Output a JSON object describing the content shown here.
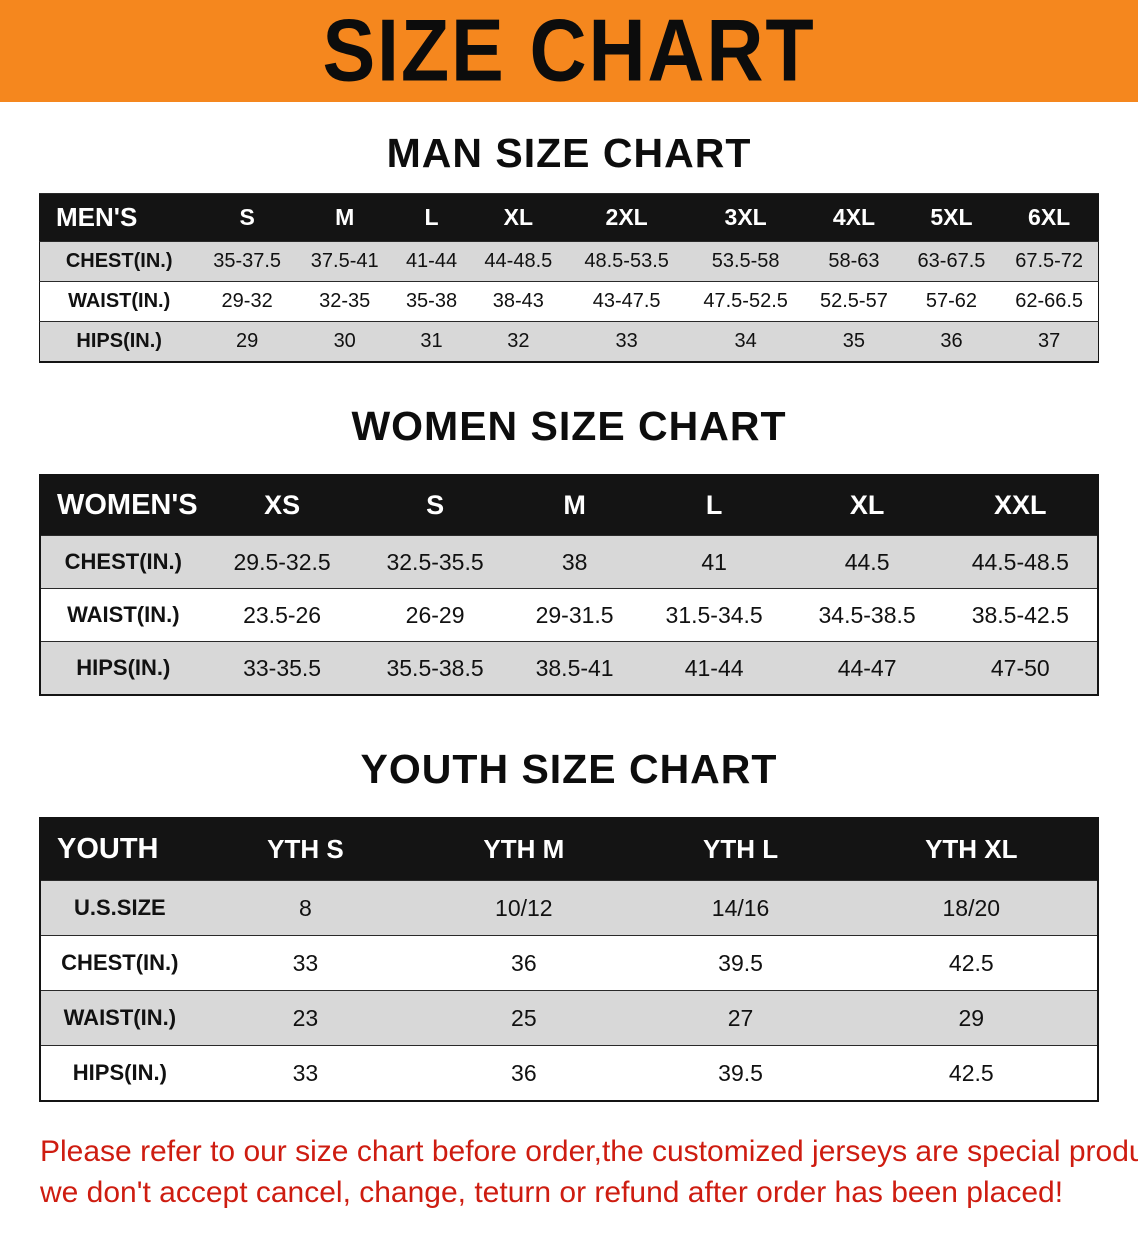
{
  "banner": {
    "title": "SIZE CHART"
  },
  "colors": {
    "banner_bg": "#f5871e",
    "header_row_bg": "#141414",
    "shaded_row_bg": "#d8d8d8",
    "note_red": "#ce1c10"
  },
  "men": {
    "heading": "MAN SIZE CHART",
    "table": {
      "header": [
        "MEN'S",
        "S",
        "M",
        "L",
        "XL",
        "2XL",
        "3XL",
        "4XL",
        "5XL",
        "6XL"
      ],
      "rows": [
        {
          "label": "CHEST(IN.)",
          "values": [
            "35-37.5",
            "37.5-41",
            "41-44",
            "44-48.5",
            "48.5-53.5",
            "53.5-58",
            "58-63",
            "63-67.5",
            "67.5-72"
          ]
        },
        {
          "label": "WAIST(IN.)",
          "values": [
            "29-32",
            "32-35",
            "35-38",
            "38-43",
            "43-47.5",
            "47.5-52.5",
            "52.5-57",
            "57-62",
            "62-66.5"
          ]
        },
        {
          "label": "HIPS(IN.)",
          "values": [
            "29",
            "30",
            "31",
            "32",
            "33",
            "34",
            "35",
            "36",
            "37"
          ]
        }
      ]
    }
  },
  "women": {
    "heading": "WOMEN SIZE CHART",
    "table": {
      "header": [
        "WOMEN'S",
        "XS",
        "S",
        "M",
        "L",
        "XL",
        "XXL"
      ],
      "rows": [
        {
          "label": "CHEST(IN.)",
          "values": [
            "29.5-32.5",
            "32.5-35.5",
            "38",
            "41",
            "44.5",
            "44.5-48.5"
          ]
        },
        {
          "label": "WAIST(IN.)",
          "values": [
            "23.5-26",
            "26-29",
            "29-31.5",
            "31.5-34.5",
            "34.5-38.5",
            "38.5-42.5"
          ]
        },
        {
          "label": "HIPS(IN.)",
          "values": [
            "33-35.5",
            "35.5-38.5",
            "38.5-41",
            "41-44",
            "44-47",
            "47-50"
          ]
        }
      ]
    }
  },
  "youth": {
    "heading": "YOUTH SIZE CHART",
    "table": {
      "header": [
        "YOUTH",
        "YTH S",
        "YTH M",
        "YTH L",
        "YTH XL"
      ],
      "rows": [
        {
          "label": "U.S.SIZE",
          "values": [
            "8",
            "10/12",
            "14/16",
            "18/20"
          ]
        },
        {
          "label": "CHEST(IN.)",
          "values": [
            "33",
            "36",
            "39.5",
            "42.5"
          ]
        },
        {
          "label": "WAIST(IN.)",
          "values": [
            "23",
            "25",
            "27",
            "29"
          ]
        },
        {
          "label": "HIPS(IN.)",
          "values": [
            "33",
            "36",
            "39.5",
            "42.5"
          ]
        }
      ]
    }
  },
  "note": {
    "line1": "Please refer to our size chart before order,the customized jerseys are special products,",
    "line2": "we don't accept cancel, change, teturn or refund after order has been placed!"
  }
}
